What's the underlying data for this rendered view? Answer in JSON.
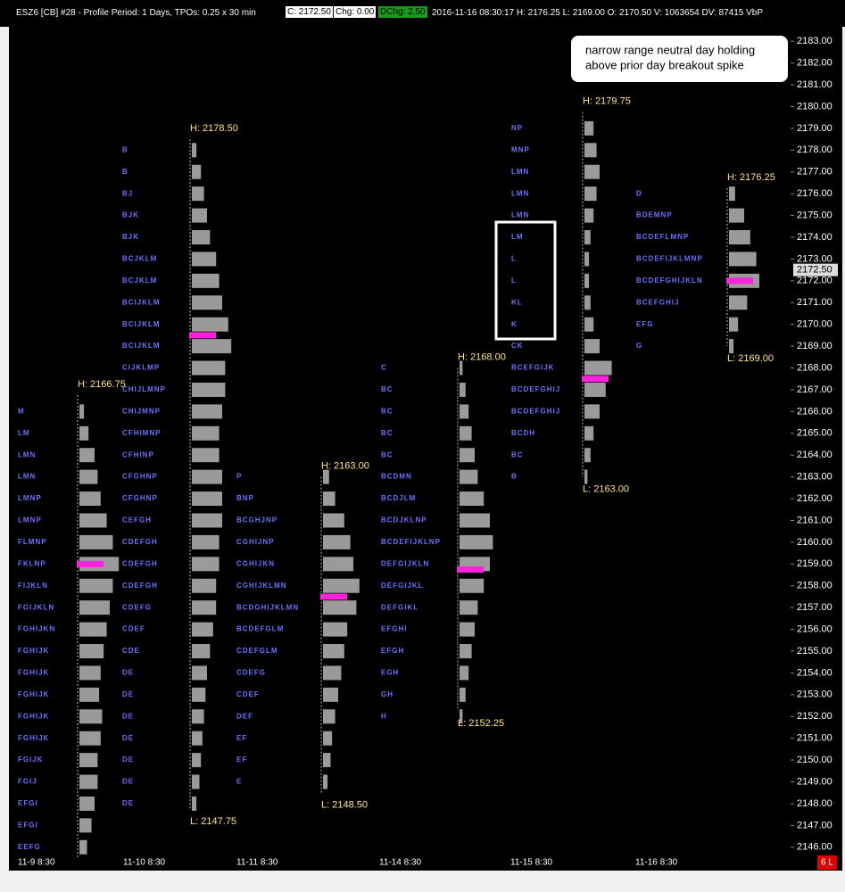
{
  "header": {
    "title": "ESZ6 [CB]  #28 - Profile Period: 1 Days, TPOs: 0.25 x 30 min",
    "close": "C: 2172.50",
    "change": "Chg: 0.00",
    "dchange": "DChg: 2.50",
    "info": "2016-11-16 08:30:17 H: 2176.25 L: 2169.00 O: 2170.50 V: 1063654 DV: 87415 VbP"
  },
  "chart_data": {
    "type": "market_profile",
    "annotation": [
      "narrow range neutral day holding",
      "above prior day breakout spike"
    ],
    "ylim": [
      2145.5,
      2183.5
    ],
    "yticks": [
      {
        "value": 2146,
        "label": "2146.00"
      },
      {
        "value": 2147,
        "label": "2147.00"
      },
      {
        "value": 2148,
        "label": "2148.00"
      },
      {
        "value": 2149,
        "label": "2149.00"
      },
      {
        "value": 2150,
        "label": "2150.00"
      },
      {
        "value": 2151,
        "label": "2151.00"
      },
      {
        "value": 2152,
        "label": "2152.00"
      },
      {
        "value": 2153,
        "label": "2153.00"
      },
      {
        "value": 2154,
        "label": "2154.00"
      },
      {
        "value": 2155,
        "label": "2155.00"
      },
      {
        "value": 2156,
        "label": "2156.00"
      },
      {
        "value": 2157,
        "label": "2157.00"
      },
      {
        "value": 2158,
        "label": "2158.00"
      },
      {
        "value": 2159,
        "label": "2159.00"
      },
      {
        "value": 2160,
        "label": "2160.00"
      },
      {
        "value": 2161,
        "label": "2161.00"
      },
      {
        "value": 2162,
        "label": "2162.00"
      },
      {
        "value": 2163,
        "label": "2163.00"
      },
      {
        "value": 2164,
        "label": "2164.00"
      },
      {
        "value": 2165,
        "label": "2165.00"
      },
      {
        "value": 2166,
        "label": "2166.00"
      },
      {
        "value": 2167,
        "label": "2167.00"
      },
      {
        "value": 2168,
        "label": "2168.00"
      },
      {
        "value": 2169,
        "label": "2169.00"
      },
      {
        "value": 2170,
        "label": "2170.00"
      },
      {
        "value": 2171,
        "label": "2171.00"
      },
      {
        "value": 2172,
        "label": "2172.00"
      },
      {
        "value": 2173,
        "label": "2173.00"
      },
      {
        "value": 2174,
        "label": "2174.00"
      },
      {
        "value": 2175,
        "label": "2175.00"
      },
      {
        "value": 2176,
        "label": "2176.00"
      },
      {
        "value": 2177,
        "label": "2177.00"
      },
      {
        "value": 2178,
        "label": "2178.00"
      },
      {
        "value": 2179,
        "label": "2179.00"
      },
      {
        "value": 2180,
        "label": "2180.00"
      },
      {
        "value": 2181,
        "label": "2181.00"
      },
      {
        "value": 2182,
        "label": "2182.00"
      },
      {
        "value": 2183,
        "label": "2183.00"
      }
    ],
    "last_price": {
      "value": 2172.5,
      "label": "2172.50"
    },
    "status": "6 L",
    "sessions": [
      {
        "name": "11-9  8:30",
        "high": 2166.75,
        "high_label": "H: 2166.75",
        "poc": 2159,
        "prices": [
          2146,
          2147,
          2148,
          2149,
          2150,
          2151,
          2152,
          2153,
          2154,
          2155,
          2156,
          2157,
          2158,
          2159,
          2160,
          2161,
          2162,
          2163,
          2164,
          2165,
          2166
        ],
        "tpo": [
          "EEFG",
          "EFGI",
          "EFGI",
          "FGIJ",
          "FGIJK",
          "FGHIJK",
          "FGHIJK",
          "FGHIJK",
          "FGHIJK",
          "FGHIJK",
          "FGHIJKN",
          "FGIJKLN",
          "FIJKLN",
          "FKLNP",
          "FLMNP",
          "LMNP",
          "LMNP",
          "LMN",
          "LMN",
          "LM",
          "M"
        ],
        "volume": [
          5,
          8,
          10,
          12,
          12,
          14,
          15,
          13,
          14,
          16,
          18,
          20,
          22,
          26,
          22,
          18,
          14,
          12,
          10,
          6,
          3
        ]
      },
      {
        "name": "11-10  8:30",
        "high": 2178.5,
        "high_label": "H: 2178.50",
        "low": 2147.75,
        "low_label": "L: 2147.75",
        "poc": 2169.5,
        "prices": [
          2148,
          2149,
          2150,
          2151,
          2152,
          2153,
          2154,
          2155,
          2156,
          2157,
          2158,
          2159,
          2160,
          2161,
          2162,
          2163,
          2164,
          2165,
          2166,
          2167,
          2168,
          2169,
          2170,
          2171,
          2172,
          2173,
          2174,
          2175,
          2176,
          2177,
          2178
        ],
        "tpo": [
          "DE",
          "DE",
          "DE",
          "DE",
          "DE",
          "DE",
          "DE",
          "CDE",
          "CDEF",
          "CDEFG",
          "CDEFGH",
          "CDEFGH",
          "CDEFGH",
          "CEFGH",
          "CFGHNP",
          "CFGHNP",
          "CFHINP",
          "CFHIMNP",
          "CHIJMNP",
          "CHIJLMNP",
          "CIJKLMP",
          "BCIJKLM",
          "BCIJKLM",
          "BCIJKLM",
          "BCJKLM",
          "BCJKLM",
          "BJK",
          "BJK",
          "BJ",
          "B",
          "B"
        ],
        "volume": [
          3,
          5,
          6,
          7,
          8,
          9,
          10,
          12,
          14,
          16,
          16,
          18,
          18,
          20,
          20,
          20,
          18,
          18,
          20,
          22,
          22,
          26,
          24,
          20,
          18,
          16,
          12,
          10,
          8,
          6,
          3
        ]
      },
      {
        "name": "11-11  8:30",
        "high": 2163,
        "high_label": "H: 2163.00",
        "low": 2148.5,
        "low_label": "L: 2148.50",
        "poc": 2157.5,
        "prices": [
          2149,
          2150,
          2151,
          2152,
          2153,
          2154,
          2155,
          2156,
          2157,
          2158,
          2159,
          2160,
          2161,
          2162,
          2163
        ],
        "tpo": [
          "E",
          "EF",
          "EF",
          "DEF",
          "CDEF",
          "CDEFG",
          "CDEFGLM",
          "BCDEFGLM",
          "BCDGHIJKLMN",
          "CGHIJKLMN",
          "CGHIJKN",
          "CGHIJNP",
          "BCGHJNP",
          "BNP",
          "P"
        ],
        "volume": [
          3,
          5,
          6,
          8,
          10,
          12,
          14,
          16,
          22,
          24,
          20,
          18,
          14,
          8,
          4
        ]
      },
      {
        "name": "11-14  8:30",
        "high": 2168,
        "high_label": "H: 2168.00",
        "low": 2152.25,
        "low_label": "L: 2152.25",
        "poc": 2158.75,
        "prices": [
          2152,
          2153,
          2154,
          2155,
          2156,
          2157,
          2158,
          2159,
          2160,
          2161,
          2162,
          2163,
          2164,
          2165,
          2166,
          2167,
          2168
        ],
        "tpo": [
          "H",
          "GH",
          "EGH",
          "EFGH",
          "EFGHI",
          "DEFGIKL",
          "DEFGIJKL",
          "DEFGIJKLN",
          "BCDEFIJKLNP",
          "BCDJKLNP",
          "BCDJLM",
          "BCDMN",
          "BC",
          "BC",
          "BC",
          "BC",
          "C"
        ],
        "volume": [
          2,
          4,
          6,
          8,
          10,
          12,
          16,
          20,
          22,
          20,
          16,
          12,
          10,
          8,
          6,
          4,
          2
        ]
      },
      {
        "name": "11-15  8:30",
        "high": 2179.75,
        "high_label": "H: 2179.75",
        "low": 2163,
        "low_label": "L: 2163.00",
        "poc": 2167.5,
        "prices": [
          2163,
          2164,
          2165,
          2166,
          2167,
          2168,
          2169,
          2170,
          2171,
          2172,
          2173,
          2174,
          2175,
          2176,
          2177,
          2178,
          2179
        ],
        "tpo": [
          "B",
          "BC",
          "BCDH",
          "BCDEFGHIJ",
          "BCDEFGHIJ",
          "BCEFGIJK",
          "CK",
          "K",
          "KL",
          "L",
          "L",
          "LM",
          "LMN",
          "LMN",
          "LMN",
          "MNP",
          "NP"
        ],
        "volume": [
          2,
          4,
          6,
          10,
          14,
          18,
          10,
          6,
          4,
          3,
          3,
          4,
          6,
          8,
          10,
          8,
          6
        ]
      },
      {
        "name": "11-16  8:30",
        "high": 2176.25,
        "high_label": "H: 2176.25",
        "low": 2169,
        "low_label": "L: 2169.00",
        "poc": 2172,
        "prices": [
          2169,
          2170,
          2171,
          2172,
          2173,
          2174,
          2175,
          2176
        ],
        "tpo": [
          "G",
          "EFG",
          "BCEFGHIJ",
          "BCDEFGHIJKLN",
          "BCDEFIJKLMNP",
          "BCDEFLMNP",
          "BDEMNP",
          "D"
        ],
        "volume": [
          3,
          6,
          12,
          20,
          18,
          14,
          10,
          4
        ]
      }
    ]
  }
}
